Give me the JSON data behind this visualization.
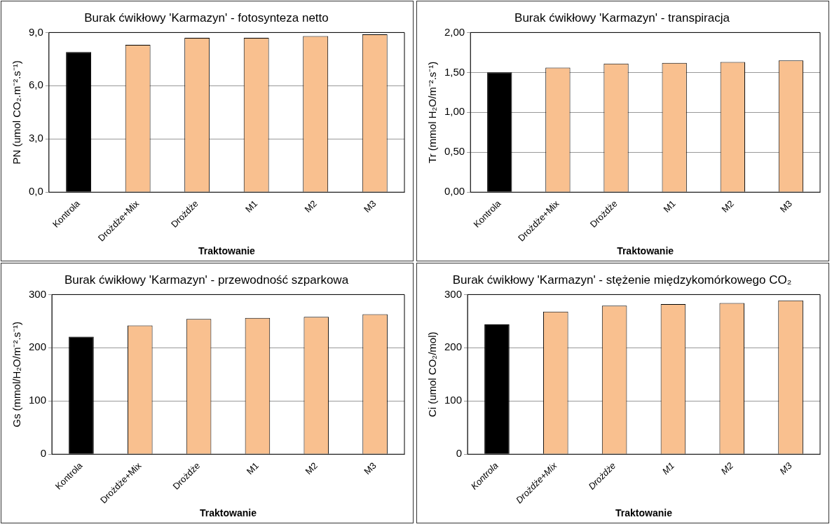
{
  "chart_data": [
    {
      "type": "bar",
      "title": "Burak ćwikłowy 'Karmazyn' - fotosynteza netto",
      "xlabel": "Traktowanie",
      "ylabel": "PN (umol CO₂.m⁻².s⁻¹)",
      "categories": [
        "Kontrola",
        "Drożdże+Mix",
        "Drożdże",
        "M1",
        "M2",
        "M3"
      ],
      "values": [
        7.9,
        8.3,
        8.7,
        8.7,
        8.8,
        8.9
      ],
      "colors": [
        "#000000",
        "#f9c08f",
        "#f9c08f",
        "#f9c08f",
        "#f9c08f",
        "#f9c08f"
      ],
      "ylim": [
        0,
        9
      ],
      "yticks": [
        {
          "value": 0,
          "label": "0,0"
        },
        {
          "value": 3,
          "label": "3,0"
        },
        {
          "value": 6,
          "label": "6,0"
        },
        {
          "value": 9,
          "label": "9,0"
        }
      ],
      "grid": "y",
      "legend": false
    },
    {
      "type": "bar",
      "title": "Burak ćwikłowy 'Karmazyn' - transpiracja",
      "xlabel": "Traktowanie",
      "ylabel": "Tr (mmol H₂O/m⁻².s⁻¹)",
      "categories": [
        "Kontrola",
        "Drożdże+Mix",
        "Drożdże",
        "M1",
        "M2",
        "M3"
      ],
      "values": [
        1.5,
        1.56,
        1.61,
        1.62,
        1.63,
        1.65
      ],
      "colors": [
        "#000000",
        "#f9c08f",
        "#f9c08f",
        "#f9c08f",
        "#f9c08f",
        "#f9c08f"
      ],
      "ylim": [
        0,
        2
      ],
      "yticks": [
        {
          "value": 0,
          "label": "0,00"
        },
        {
          "value": 0.5,
          "label": "0,50"
        },
        {
          "value": 1,
          "label": "1,00"
        },
        {
          "value": 1.5,
          "label": "1,50"
        },
        {
          "value": 2,
          "label": "2,00"
        }
      ],
      "grid": "y",
      "legend": false
    },
    {
      "type": "bar",
      "title": "Burak ćwikłowy 'Karmazyn' - przewodność szparkowa",
      "xlabel": "Traktowanie",
      "ylabel": "Gs (mmol/H₂O/m⁻².s⁻¹)",
      "categories": [
        "Kontrola",
        "Drożdże+Mix",
        "Drożdże",
        "M1",
        "M2",
        "M3"
      ],
      "values": [
        221,
        242,
        254,
        256,
        258,
        263
      ],
      "colors": [
        "#000000",
        "#f9c08f",
        "#f9c08f",
        "#f9c08f",
        "#f9c08f",
        "#f9c08f"
      ],
      "ylim": [
        0,
        300
      ],
      "yticks": [
        0,
        100,
        200,
        300
      ],
      "grid": "y",
      "legend": false
    },
    {
      "type": "bar",
      "title": "Burak ćwikłowy 'Karmazyn' - stężenie międzykomórkowego CO₂",
      "xlabel": "Traktowanie",
      "ylabel": "Ci (umol CO₂/mol)",
      "categories": [
        "Kontrola",
        "Drożdże+Mix",
        "Drożdże",
        "M1",
        "M2",
        "M3"
      ],
      "values": [
        244,
        268,
        279,
        282,
        284,
        289
      ],
      "colors": [
        "#000000",
        "#f9c08f",
        "#f9c08f",
        "#f9c08f",
        "#f9c08f",
        "#f9c08f"
      ],
      "ylim": [
        0,
        300
      ],
      "yticks": [
        0,
        100,
        200,
        300
      ],
      "grid": "y",
      "legend": false
    }
  ]
}
